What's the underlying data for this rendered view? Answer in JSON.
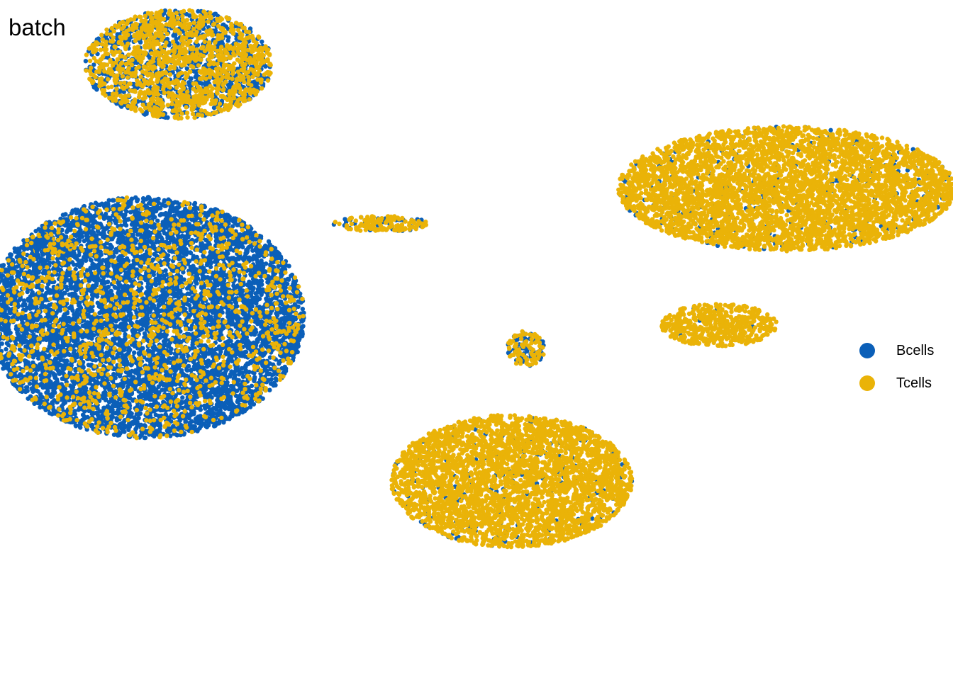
{
  "chart_data": {
    "type": "scatter",
    "title": "batch",
    "xlabel": "",
    "ylabel": "",
    "grid": false,
    "axes_visible": false,
    "legend_position": "right",
    "series": [
      {
        "name": "Bcells",
        "color": "#0B5FB8"
      },
      {
        "name": "Tcells",
        "color": "#EAB308"
      }
    ],
    "clusters": [
      {
        "center": [
          -5.7,
          6.9
        ],
        "size": [
          3.9,
          2.8
        ],
        "bcells_fraction": 0.45
      },
      {
        "center": [
          -6.4,
          0.4
        ],
        "size": [
          6.6,
          6.2
        ],
        "bcells_fraction": 0.85
      },
      {
        "center": [
          -8.4,
          2.3
        ],
        "size": [
          1.0,
          0.5
        ],
        "bcells_fraction": 0.7
      },
      {
        "center": [
          -1.5,
          2.8
        ],
        "size": [
          2.0,
          0.4
        ],
        "bcells_fraction": 0.3
      },
      {
        "center": [
          6.9,
          3.7
        ],
        "size": [
          7.0,
          3.2
        ],
        "bcells_fraction": 0.06
      },
      {
        "center": [
          5.5,
          0.2
        ],
        "size": [
          2.4,
          1.1
        ],
        "bcells_fraction": 0.03
      },
      {
        "center": [
          1.5,
          -0.4
        ],
        "size": [
          0.8,
          0.9
        ],
        "bcells_fraction": 0.35
      },
      {
        "center": [
          1.2,
          -3.8
        ],
        "size": [
          5.0,
          3.4
        ],
        "bcells_fraction": 0.05
      }
    ]
  }
}
